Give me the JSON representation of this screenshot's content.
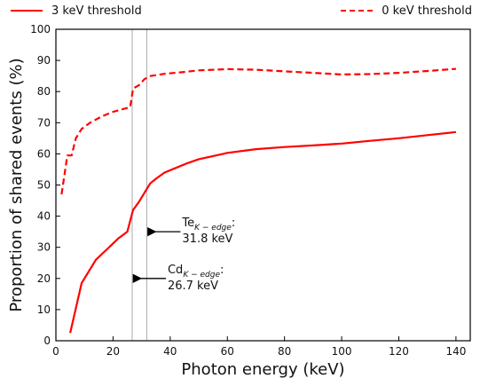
{
  "chart_data": {
    "type": "line",
    "title": "",
    "xlabel": "Photon energy (keV)",
    "ylabel": "Proportion of shared events (%)",
    "xlim": [
      0,
      145
    ],
    "ylim": [
      0,
      100
    ],
    "xticks": [
      0,
      20,
      40,
      60,
      80,
      100,
      120,
      140
    ],
    "yticks": [
      0,
      10,
      20,
      30,
      40,
      50,
      60,
      70,
      80,
      90,
      100
    ],
    "grid": false,
    "legend_placement": "top",
    "series": [
      {
        "name": "3 keV threshold",
        "style": "solid",
        "color": "#ff0000",
        "x": [
          5,
          9,
          14,
          18,
          22,
          25,
          27,
          29,
          31,
          33,
          35,
          38,
          42,
          46,
          50,
          55,
          60,
          70,
          80,
          90,
          100,
          110,
          120,
          130,
          140
        ],
        "y": [
          2.5,
          18.5,
          26,
          29.5,
          33,
          35,
          42,
          44.5,
          47.5,
          50.5,
          52,
          54,
          55.5,
          57,
          58.3,
          59.3,
          60.3,
          61.5,
          62.2,
          62.7,
          63.3,
          64.2,
          65,
          66,
          67
        ]
      },
      {
        "name": "0 keV threshold",
        "style": "dashed",
        "color": "#ff0000",
        "x": [
          2,
          4,
          5.5,
          7,
          9,
          12,
          16,
          20,
          24,
          26,
          27,
          29,
          31,
          33,
          38,
          45,
          50,
          60,
          70,
          80,
          90,
          100,
          110,
          120,
          130,
          140
        ],
        "y": [
          47,
          59.5,
          59.5,
          65,
          68,
          70,
          72,
          73.5,
          74.5,
          75,
          81,
          82,
          84,
          85,
          85.7,
          86.3,
          86.8,
          87.2,
          87,
          86.5,
          86,
          85.5,
          85.6,
          86,
          86.6,
          87.3
        ]
      }
    ],
    "vlines": [
      26.7,
      31.8
    ],
    "annotations": [
      {
        "label": "Te",
        "subscript": "K − edge",
        "value": "31.8 keV",
        "x": 31.8
      },
      {
        "label": "Cd",
        "subscript": "K − edge",
        "value": "26.7 keV",
        "x": 26.7
      }
    ]
  },
  "colors": {
    "series": "#ff0000",
    "vline": "#aaaaaa",
    "axis": "#000000"
  }
}
